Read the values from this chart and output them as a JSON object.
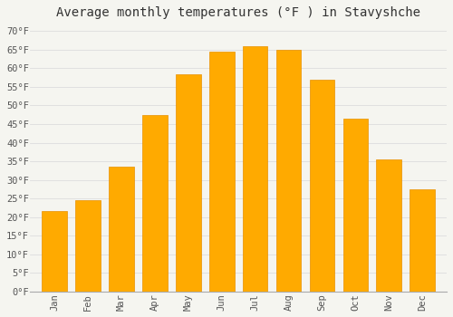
{
  "title": "Average monthly temperatures (°F ) in Stavyshche",
  "months": [
    "Jan",
    "Feb",
    "Mar",
    "Apr",
    "May",
    "Jun",
    "Jul",
    "Aug",
    "Sep",
    "Oct",
    "Nov",
    "Dec"
  ],
  "values": [
    21.5,
    24.5,
    33.5,
    47.5,
    58.5,
    64.5,
    66.0,
    65.0,
    57.0,
    46.5,
    35.5,
    27.5
  ],
  "bar_color": "#FFAA00",
  "bar_edge_color": "#E89000",
  "background_color": "#F5F5F0",
  "grid_color": "#DDDDDD",
  "ylim": [
    0,
    72
  ],
  "yticks": [
    0,
    5,
    10,
    15,
    20,
    25,
    30,
    35,
    40,
    45,
    50,
    55,
    60,
    65,
    70
  ],
  "ytick_labels": [
    "0°F",
    "5°F",
    "10°F",
    "15°F",
    "20°F",
    "25°F",
    "30°F",
    "35°F",
    "40°F",
    "45°F",
    "50°F",
    "55°F",
    "60°F",
    "65°F",
    "70°F"
  ],
  "title_fontsize": 10,
  "tick_fontsize": 7.5,
  "font_family": "monospace",
  "tick_color": "#555555",
  "spine_color": "#AAAAAA"
}
